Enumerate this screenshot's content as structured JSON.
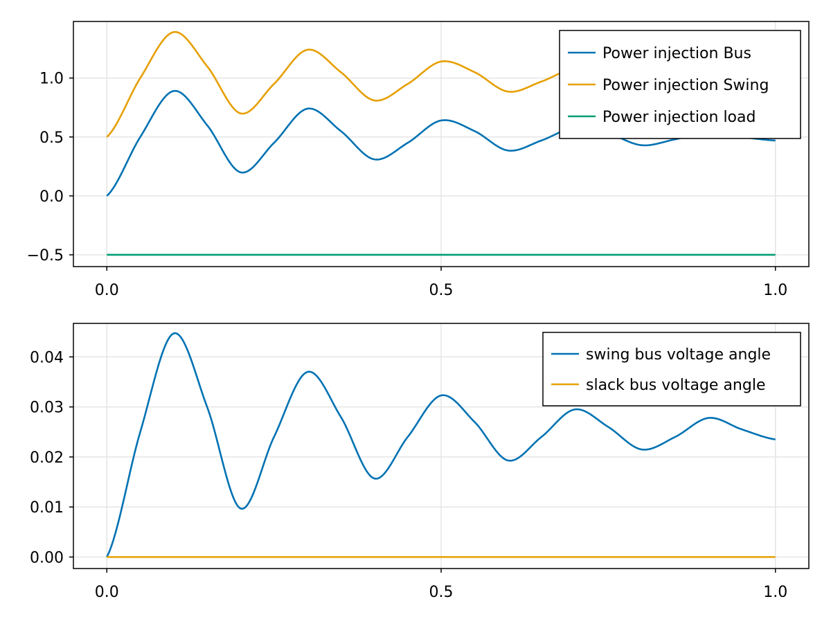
{
  "chart_data": [
    {
      "type": "line",
      "title": "",
      "xlabel": "",
      "ylabel": "",
      "xlim": [
        -0.05,
        1.05
      ],
      "ylim": [
        -0.6,
        1.48
      ],
      "xticks": [
        0.0,
        0.5,
        1.0
      ],
      "xtick_labels": [
        "0.0",
        "0.5",
        "1.0"
      ],
      "yticks": [
        -0.5,
        0.0,
        0.5,
        1.0
      ],
      "ytick_labels": [
        "−0.5",
        "0.0",
        "0.5",
        "1.0"
      ],
      "grid": true,
      "legend_position": "top-right",
      "x": [
        0.0,
        0.05,
        0.1,
        0.15,
        0.2,
        0.25,
        0.3,
        0.35,
        0.4,
        0.45,
        0.5,
        0.55,
        0.6,
        0.65,
        0.7,
        0.75,
        0.8,
        0.85,
        0.9,
        0.95,
        1.0
      ],
      "series": [
        {
          "name": "Power injection Bus",
          "color": "#0072b2",
          "values": [
            0.0,
            0.5,
            0.89,
            0.6,
            0.2,
            0.45,
            0.74,
            0.55,
            0.31,
            0.45,
            0.64,
            0.55,
            0.385,
            0.47,
            0.58,
            0.53,
            0.43,
            0.48,
            0.54,
            0.5,
            0.47
          ]
        },
        {
          "name": "Power injection Swing",
          "color": "#e69f00",
          "values": [
            0.5,
            1.0,
            1.39,
            1.1,
            0.7,
            0.95,
            1.24,
            1.05,
            0.81,
            0.95,
            1.14,
            1.05,
            0.885,
            0.97,
            1.08,
            1.03,
            0.93,
            0.98,
            1.04,
            1.0,
            0.97
          ]
        },
        {
          "name": "Power injection load",
          "color": "#009e73",
          "values": [
            -0.5,
            -0.5,
            -0.5,
            -0.5,
            -0.5,
            -0.5,
            -0.5,
            -0.5,
            -0.5,
            -0.5,
            -0.5,
            -0.5,
            -0.5,
            -0.5,
            -0.5,
            -0.5,
            -0.5,
            -0.5,
            -0.5,
            -0.5,
            -0.5
          ]
        }
      ]
    },
    {
      "type": "line",
      "title": "",
      "xlabel": "",
      "ylabel": "",
      "xlim": [
        -0.05,
        1.05
      ],
      "ylim": [
        -0.0023,
        0.0467
      ],
      "xticks": [
        0.0,
        0.5,
        1.0
      ],
      "xtick_labels": [
        "0.0",
        "0.5",
        "1.0"
      ],
      "yticks": [
        0.0,
        0.01,
        0.02,
        0.03,
        0.04
      ],
      "ytick_labels": [
        "0.00",
        "0.01",
        "0.02",
        "0.03",
        "0.04"
      ],
      "grid": true,
      "legend_position": "top-right",
      "x": [
        0.0,
        0.05,
        0.1,
        0.15,
        0.2,
        0.25,
        0.3,
        0.35,
        0.4,
        0.45,
        0.5,
        0.55,
        0.6,
        0.65,
        0.7,
        0.75,
        0.8,
        0.85,
        0.9,
        0.95,
        1.0
      ],
      "series": [
        {
          "name": "swing bus voltage angle",
          "color": "#0072b2",
          "values": [
            0.0,
            0.025,
            0.0447,
            0.03,
            0.0097,
            0.024,
            0.037,
            0.028,
            0.0157,
            0.024,
            0.0323,
            0.027,
            0.0193,
            0.024,
            0.0295,
            0.026,
            0.0215,
            0.024,
            0.0278,
            0.0255,
            0.0235
          ]
        },
        {
          "name": "slack bus voltage angle",
          "color": "#e69f00",
          "values": [
            0.0,
            0.0,
            0.0,
            0.0,
            0.0,
            0.0,
            0.0,
            0.0,
            0.0,
            0.0,
            0.0,
            0.0,
            0.0,
            0.0,
            0.0,
            0.0,
            0.0,
            0.0,
            0.0,
            0.0,
            0.0
          ]
        }
      ]
    }
  ]
}
